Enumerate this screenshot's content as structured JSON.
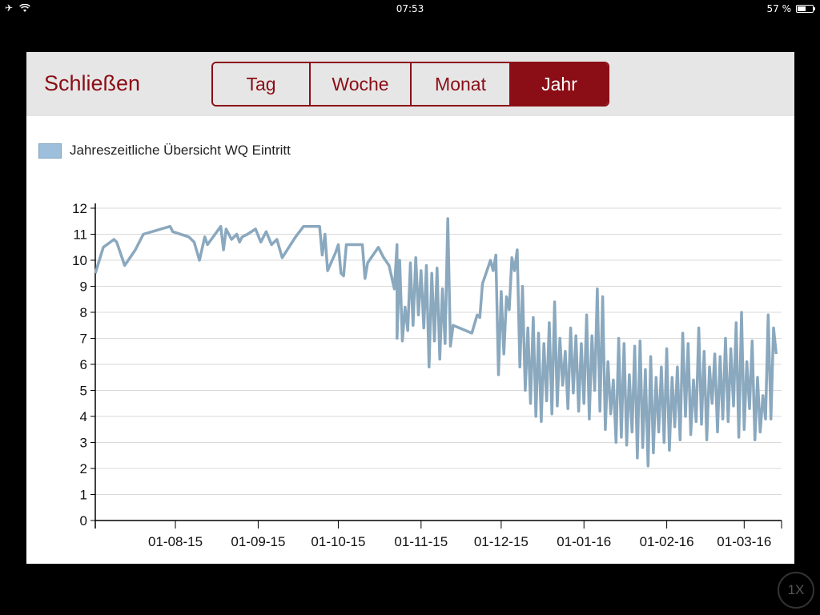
{
  "status_bar": {
    "time": "07:53",
    "battery_text": "57 %",
    "battery_level": 0.57
  },
  "toolbar": {
    "close_label": "Schließen",
    "segments": [
      {
        "label": "Tag",
        "active": false
      },
      {
        "label": "Woche",
        "active": false
      },
      {
        "label": "Monat",
        "active": false
      },
      {
        "label": "Jahr",
        "active": true
      }
    ]
  },
  "legend": {
    "label": "Jahreszeitliche Übersicht WQ Eintritt",
    "color": "#9dbfdb"
  },
  "overlay": {
    "zoom_label": "1X"
  },
  "chart_data": {
    "type": "line",
    "title": "",
    "xlabel": "",
    "ylabel": "",
    "ylim": [
      0,
      12
    ],
    "yticks": [
      0,
      1,
      2,
      3,
      4,
      5,
      6,
      7,
      8,
      9,
      10,
      11,
      12
    ],
    "xticks": [
      {
        "date": "2015-08-01",
        "label": "01-08-15"
      },
      {
        "date": "2015-09-01",
        "label": "01-09-15"
      },
      {
        "date": "2015-10-01",
        "label": "01-10-15"
      },
      {
        "date": "2015-11-01",
        "label": "01-11-15"
      },
      {
        "date": "2015-12-01",
        "label": "01-12-15"
      },
      {
        "date": "2016-01-01",
        "label": "01-01-16"
      },
      {
        "date": "2016-02-01",
        "label": "01-02-16"
      },
      {
        "date": "2016-03-01",
        "label": "01-03-16"
      }
    ],
    "xlim": [
      "2015-07-02",
      "2016-03-15"
    ],
    "grid": true,
    "legend_position": "top-left",
    "series": [
      {
        "name": "Jahreszeitliche Übersicht WQ Eintritt",
        "color": "#8aa8be",
        "points": [
          [
            "2015-07-02",
            9.5
          ],
          [
            "2015-07-05",
            10.5
          ],
          [
            "2015-07-09",
            10.8
          ],
          [
            "2015-07-10",
            10.7
          ],
          [
            "2015-07-13",
            9.8
          ],
          [
            "2015-07-17",
            10.4
          ],
          [
            "2015-07-20",
            11.0
          ],
          [
            "2015-07-30",
            11.3
          ],
          [
            "2015-07-31",
            11.1
          ],
          [
            "2015-08-06",
            10.9
          ],
          [
            "2015-08-08",
            10.7
          ],
          [
            "2015-08-10",
            10.0
          ],
          [
            "2015-08-12",
            10.9
          ],
          [
            "2015-08-13",
            10.6
          ],
          [
            "2015-08-18",
            11.3
          ],
          [
            "2015-08-19",
            10.4
          ],
          [
            "2015-08-20",
            11.2
          ],
          [
            "2015-08-22",
            10.8
          ],
          [
            "2015-08-24",
            11.0
          ],
          [
            "2015-08-25",
            10.7
          ],
          [
            "2015-08-26",
            10.9
          ],
          [
            "2015-08-28",
            11.0
          ],
          [
            "2015-08-31",
            11.2
          ],
          [
            "2015-09-02",
            10.7
          ],
          [
            "2015-09-04",
            11.1
          ],
          [
            "2015-09-06",
            10.6
          ],
          [
            "2015-09-08",
            10.8
          ],
          [
            "2015-09-10",
            10.1
          ],
          [
            "2015-09-15",
            10.9
          ],
          [
            "2015-09-18",
            11.3
          ],
          [
            "2015-09-24",
            11.3
          ],
          [
            "2015-09-25",
            10.2
          ],
          [
            "2015-09-26",
            11.0
          ],
          [
            "2015-09-27",
            9.6
          ],
          [
            "2015-09-30",
            10.3
          ],
          [
            "2015-10-01",
            10.6
          ],
          [
            "2015-10-02",
            9.5
          ],
          [
            "2015-10-03",
            9.4
          ],
          [
            "2015-10-04",
            10.6
          ],
          [
            "2015-10-10",
            10.6
          ],
          [
            "2015-10-11",
            9.3
          ],
          [
            "2015-10-12",
            9.9
          ],
          [
            "2015-10-16",
            10.5
          ],
          [
            "2015-10-18",
            10.1
          ],
          [
            "2015-10-20",
            9.8
          ],
          [
            "2015-10-22",
            8.9
          ],
          [
            "2015-10-23",
            10.6
          ],
          [
            "2015-10-23",
            7.0
          ],
          [
            "2015-10-24",
            10.0
          ],
          [
            "2015-10-25",
            6.9
          ],
          [
            "2015-10-26",
            8.2
          ],
          [
            "2015-10-27",
            7.3
          ],
          [
            "2015-10-28",
            9.9
          ],
          [
            "2015-10-29",
            7.5
          ],
          [
            "2015-10-30",
            10.1
          ],
          [
            "2015-10-31",
            7.9
          ],
          [
            "2015-11-01",
            9.6
          ],
          [
            "2015-11-02",
            7.4
          ],
          [
            "2015-11-03",
            9.8
          ],
          [
            "2015-11-04",
            5.9
          ],
          [
            "2015-11-05",
            9.5
          ],
          [
            "2015-11-06",
            6.9
          ],
          [
            "2015-11-07",
            9.7
          ],
          [
            "2015-11-08",
            6.2
          ],
          [
            "2015-11-09",
            8.9
          ],
          [
            "2015-11-10",
            6.8
          ],
          [
            "2015-11-11",
            11.6
          ],
          [
            "2015-11-12",
            6.7
          ],
          [
            "2015-11-13",
            7.5
          ],
          [
            "2015-11-20",
            7.2
          ],
          [
            "2015-11-22",
            7.9
          ],
          [
            "2015-11-23",
            7.8
          ],
          [
            "2015-11-24",
            9.1
          ],
          [
            "2015-11-27",
            10.0
          ],
          [
            "2015-11-28",
            9.6
          ],
          [
            "2015-11-29",
            10.2
          ],
          [
            "2015-11-30",
            5.6
          ],
          [
            "2015-12-01",
            8.8
          ],
          [
            "2015-12-02",
            6.4
          ],
          [
            "2015-12-03",
            8.6
          ],
          [
            "2015-12-04",
            8.1
          ],
          [
            "2015-12-05",
            10.1
          ],
          [
            "2015-12-06",
            9.6
          ],
          [
            "2015-12-07",
            10.4
          ],
          [
            "2015-12-08",
            5.9
          ],
          [
            "2015-12-09",
            9.0
          ],
          [
            "2015-12-10",
            5.0
          ],
          [
            "2015-12-11",
            7.4
          ],
          [
            "2015-12-12",
            4.5
          ],
          [
            "2015-12-13",
            7.8
          ],
          [
            "2015-12-14",
            4.0
          ],
          [
            "2015-12-15",
            7.2
          ],
          [
            "2015-12-16",
            3.8
          ],
          [
            "2015-12-17",
            6.8
          ],
          [
            "2015-12-18",
            4.6
          ],
          [
            "2015-12-19",
            7.6
          ],
          [
            "2015-12-20",
            4.1
          ],
          [
            "2015-12-21",
            8.4
          ],
          [
            "2015-12-22",
            4.4
          ],
          [
            "2015-12-23",
            7.0
          ],
          [
            "2015-12-24",
            5.2
          ],
          [
            "2015-12-25",
            6.5
          ],
          [
            "2015-12-26",
            4.3
          ],
          [
            "2015-12-27",
            7.4
          ],
          [
            "2015-12-28",
            4.9
          ],
          [
            "2015-12-29",
            7.1
          ],
          [
            "2015-12-30",
            4.2
          ],
          [
            "2015-12-31",
            6.8
          ],
          [
            "2016-01-01",
            4.5
          ],
          [
            "2016-01-02",
            7.9
          ],
          [
            "2016-01-03",
            3.9
          ],
          [
            "2016-01-04",
            7.1
          ],
          [
            "2016-01-05",
            5.0
          ],
          [
            "2016-01-06",
            8.9
          ],
          [
            "2016-01-07",
            4.2
          ],
          [
            "2016-01-08",
            8.6
          ],
          [
            "2016-01-09",
            3.5
          ],
          [
            "2016-01-10",
            6.1
          ],
          [
            "2016-01-11",
            4.1
          ],
          [
            "2016-01-12",
            5.4
          ],
          [
            "2016-01-13",
            3.0
          ],
          [
            "2016-01-14",
            7.0
          ],
          [
            "2016-01-15",
            3.2
          ],
          [
            "2016-01-16",
            6.8
          ],
          [
            "2016-01-17",
            2.9
          ],
          [
            "2016-01-18",
            5.6
          ],
          [
            "2016-01-19",
            3.4
          ],
          [
            "2016-01-20",
            6.7
          ],
          [
            "2016-01-21",
            2.4
          ],
          [
            "2016-01-22",
            6.9
          ],
          [
            "2016-01-23",
            2.8
          ],
          [
            "2016-01-24",
            5.8
          ],
          [
            "2016-01-25",
            2.1
          ],
          [
            "2016-01-26",
            6.3
          ],
          [
            "2016-01-27",
            2.6
          ],
          [
            "2016-01-28",
            5.5
          ],
          [
            "2016-01-29",
            3.4
          ],
          [
            "2016-01-30",
            5.9
          ],
          [
            "2016-01-31",
            3.0
          ],
          [
            "2016-02-01",
            6.6
          ],
          [
            "2016-02-02",
            2.7
          ],
          [
            "2016-02-03",
            5.5
          ],
          [
            "2016-02-04",
            3.6
          ],
          [
            "2016-02-05",
            5.9
          ],
          [
            "2016-02-06",
            3.1
          ],
          [
            "2016-02-07",
            7.2
          ],
          [
            "2016-02-08",
            4.0
          ],
          [
            "2016-02-09",
            6.8
          ],
          [
            "2016-02-10",
            3.3
          ],
          [
            "2016-02-11",
            5.4
          ],
          [
            "2016-02-12",
            3.8
          ],
          [
            "2016-02-13",
            7.4
          ],
          [
            "2016-02-14",
            3.7
          ],
          [
            "2016-02-15",
            6.5
          ],
          [
            "2016-02-16",
            3.1
          ],
          [
            "2016-02-17",
            5.9
          ],
          [
            "2016-02-18",
            4.5
          ],
          [
            "2016-02-19",
            6.4
          ],
          [
            "2016-02-20",
            3.4
          ],
          [
            "2016-02-21",
            6.3
          ],
          [
            "2016-02-22",
            3.9
          ],
          [
            "2016-02-23",
            7.0
          ],
          [
            "2016-02-24",
            3.8
          ],
          [
            "2016-02-25",
            6.6
          ],
          [
            "2016-02-26",
            4.4
          ],
          [
            "2016-02-27",
            7.6
          ],
          [
            "2016-02-28",
            3.2
          ],
          [
            "2016-02-29",
            8.0
          ],
          [
            "2016-03-01",
            3.5
          ],
          [
            "2016-03-02",
            6.1
          ],
          [
            "2016-03-03",
            4.3
          ],
          [
            "2016-03-04",
            6.9
          ],
          [
            "2016-03-05",
            3.1
          ],
          [
            "2016-03-06",
            5.5
          ],
          [
            "2016-03-07",
            3.4
          ],
          [
            "2016-03-08",
            4.8
          ],
          [
            "2016-03-09",
            3.9
          ],
          [
            "2016-03-10",
            7.9
          ],
          [
            "2016-03-11",
            3.9
          ],
          [
            "2016-03-12",
            7.4
          ],
          [
            "2016-03-13",
            6.4
          ]
        ]
      }
    ]
  }
}
